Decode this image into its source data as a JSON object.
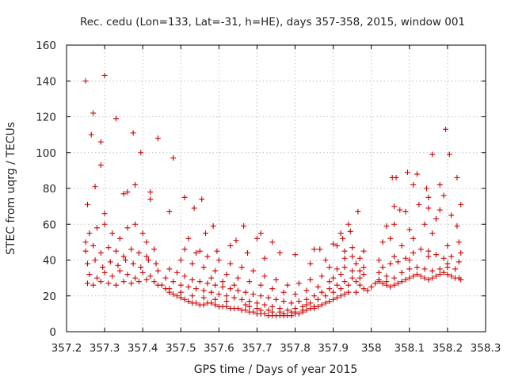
{
  "chart_data": {
    "type": "scatter",
    "title": "Rec. cedu (Lon=133, Lat=-31, h=HE), days 357-358, 2015, window 001",
    "xlabel": "GPS time / Days of year 2015",
    "ylabel": "STEC from uqrg / TECUs",
    "xlim": [
      357.2,
      358.3
    ],
    "ylim": [
      0,
      160
    ],
    "xticks": [
      357.2,
      357.3,
      357.4,
      357.5,
      357.6,
      357.7,
      357.8,
      357.9,
      358.0,
      358.1,
      358.2,
      358.3
    ],
    "xtick_labels": [
      "357.2",
      "357.3",
      "357.4",
      "357.5",
      "357.6",
      "357.7",
      "357.8",
      "357.9",
      "358",
      "358.1",
      "358.2",
      "358.3"
    ],
    "yticks": [
      0,
      20,
      40,
      60,
      80,
      100,
      120,
      140,
      160
    ],
    "ytick_labels": [
      "0",
      "20",
      "40",
      "60",
      "80",
      "100",
      "120",
      "140",
      "160"
    ],
    "grid": true,
    "marker": "plus",
    "marker_color": "#cc0000",
    "points": [
      [
        357.25,
        140
      ],
      [
        357.3,
        143
      ],
      [
        357.27,
        122
      ],
      [
        357.33,
        119
      ],
      [
        357.265,
        110
      ],
      [
        357.29,
        106
      ],
      [
        357.375,
        111
      ],
      [
        357.44,
        108
      ],
      [
        357.395,
        100
      ],
      [
        357.48,
        97
      ],
      [
        357.29,
        93
      ],
      [
        357.38,
        82
      ],
      [
        357.275,
        81
      ],
      [
        357.35,
        77
      ],
      [
        357.42,
        78
      ],
      [
        357.3,
        66
      ],
      [
        357.255,
        71
      ],
      [
        357.36,
        78
      ],
      [
        357.42,
        74
      ],
      [
        357.47,
        67
      ],
      [
        357.51,
        75
      ],
      [
        357.555,
        74
      ],
      [
        357.535,
        69
      ],
      [
        357.585,
        59
      ],
      [
        357.565,
        55
      ],
      [
        357.665,
        59
      ],
      [
        357.71,
        55
      ],
      [
        357.74,
        50
      ],
      [
        357.7,
        52
      ],
      [
        357.645,
        51
      ],
      [
        357.52,
        52
      ],
      [
        357.55,
        45
      ],
      [
        357.595,
        45
      ],
      [
        357.63,
        48
      ],
      [
        357.675,
        44
      ],
      [
        357.72,
        41
      ],
      [
        357.76,
        44
      ],
      [
        357.8,
        43
      ],
      [
        357.85,
        46
      ],
      [
        357.865,
        46
      ],
      [
        357.9,
        49
      ],
      [
        357.925,
        52
      ],
      [
        357.945,
        56
      ],
      [
        357.965,
        67
      ],
      [
        357.95,
        47
      ],
      [
        357.98,
        45
      ],
      [
        357.97,
        41
      ],
      [
        357.93,
        41
      ],
      [
        357.88,
        40
      ],
      [
        357.84,
        38
      ],
      [
        358.055,
        86
      ],
      [
        358.065,
        86
      ],
      [
        358.095,
        89
      ],
      [
        358.11,
        82
      ],
      [
        358.12,
        88
      ],
      [
        358.145,
        80
      ],
      [
        358.15,
        75
      ],
      [
        358.16,
        99
      ],
      [
        358.195,
        113
      ],
      [
        358.205,
        99
      ],
      [
        358.225,
        86
      ],
      [
        358.18,
        82
      ],
      [
        358.19,
        76
      ],
      [
        358.235,
        71
      ],
      [
        358.06,
        70
      ],
      [
        358.075,
        68
      ],
      [
        358.09,
        67
      ],
      [
        358.125,
        71
      ],
      [
        358.15,
        69
      ],
      [
        358.18,
        68
      ],
      [
        358.21,
        65
      ],
      [
        358.04,
        59
      ],
      [
        358.06,
        60
      ],
      [
        358.1,
        57
      ],
      [
        358.14,
        60
      ],
      [
        358.17,
        63
      ],
      [
        358.225,
        59
      ],
      [
        358.23,
        50
      ],
      [
        358.235,
        44
      ],
      [
        358.03,
        50
      ],
      [
        358.05,
        52
      ],
      [
        358.08,
        48
      ],
      [
        358.11,
        52
      ],
      [
        358.16,
        55
      ],
      [
        358.2,
        48
      ],
      [
        358.02,
        40
      ],
      [
        358.06,
        42
      ],
      [
        358.1,
        40
      ],
      [
        358.15,
        42
      ],
      [
        358.2,
        38
      ],
      [
        357.25,
        50
      ],
      [
        357.26,
        55
      ],
      [
        357.28,
        58
      ],
      [
        357.3,
        60
      ],
      [
        357.32,
        55
      ],
      [
        357.34,
        52
      ],
      [
        357.36,
        58
      ],
      [
        357.38,
        60
      ],
      [
        357.4,
        55
      ],
      [
        357.41,
        50
      ],
      [
        357.25,
        45
      ],
      [
        357.27,
        48
      ],
      [
        357.29,
        44
      ],
      [
        357.31,
        47
      ],
      [
        357.33,
        45
      ],
      [
        357.35,
        42
      ],
      [
        357.37,
        46
      ],
      [
        357.39,
        44
      ],
      [
        357.41,
        42
      ],
      [
        357.43,
        46
      ],
      [
        357.255,
        38
      ],
      [
        357.275,
        40
      ],
      [
        357.295,
        36
      ],
      [
        357.315,
        39
      ],
      [
        357.335,
        37
      ],
      [
        357.355,
        40
      ],
      [
        357.375,
        38
      ],
      [
        357.395,
        36
      ],
      [
        357.415,
        40
      ],
      [
        357.435,
        38
      ],
      [
        357.26,
        32
      ],
      [
        357.28,
        30
      ],
      [
        357.3,
        33
      ],
      [
        357.32,
        31
      ],
      [
        357.34,
        34
      ],
      [
        357.36,
        32
      ],
      [
        357.38,
        30
      ],
      [
        357.4,
        33
      ],
      [
        357.42,
        31
      ],
      [
        357.44,
        34
      ],
      [
        357.255,
        27
      ],
      [
        357.27,
        26
      ],
      [
        357.29,
        28
      ],
      [
        357.31,
        27
      ],
      [
        357.33,
        26
      ],
      [
        357.35,
        28
      ],
      [
        357.37,
        27
      ],
      [
        357.39,
        28
      ],
      [
        357.41,
        29
      ],
      [
        357.43,
        28
      ],
      [
        357.45,
        26
      ],
      [
        357.46,
        24
      ],
      [
        357.47,
        22
      ],
      [
        357.48,
        21
      ],
      [
        357.49,
        20
      ],
      [
        357.5,
        19
      ],
      [
        357.51,
        18
      ],
      [
        357.52,
        17
      ],
      [
        357.53,
        16
      ],
      [
        357.54,
        16
      ],
      [
        357.55,
        15
      ],
      [
        357.56,
        15
      ],
      [
        357.57,
        16
      ],
      [
        357.58,
        16
      ],
      [
        357.59,
        15
      ],
      [
        357.6,
        14
      ],
      [
        357.61,
        14
      ],
      [
        357.62,
        14
      ],
      [
        357.63,
        13
      ],
      [
        357.64,
        13
      ],
      [
        357.65,
        13
      ],
      [
        357.66,
        12
      ],
      [
        357.67,
        12
      ],
      [
        357.68,
        11
      ],
      [
        357.69,
        11
      ],
      [
        357.7,
        10
      ],
      [
        357.71,
        10
      ],
      [
        357.72,
        10
      ],
      [
        357.73,
        9
      ],
      [
        357.74,
        9
      ],
      [
        357.75,
        9
      ],
      [
        357.76,
        9
      ],
      [
        357.77,
        9
      ],
      [
        357.78,
        9
      ],
      [
        357.79,
        9
      ],
      [
        357.8,
        10
      ],
      [
        357.81,
        10
      ],
      [
        357.82,
        11
      ],
      [
        357.83,
        12
      ],
      [
        357.84,
        13
      ],
      [
        357.85,
        14
      ],
      [
        357.86,
        14
      ],
      [
        357.87,
        15
      ],
      [
        357.88,
        16
      ],
      [
        357.89,
        17
      ],
      [
        357.9,
        18
      ],
      [
        357.91,
        19
      ],
      [
        357.92,
        20
      ],
      [
        357.93,
        21
      ],
      [
        357.94,
        22
      ],
      [
        357.46,
        30
      ],
      [
        357.48,
        28
      ],
      [
        357.5,
        26
      ],
      [
        357.52,
        25
      ],
      [
        357.54,
        24
      ],
      [
        357.56,
        23
      ],
      [
        357.58,
        22
      ],
      [
        357.6,
        21
      ],
      [
        357.62,
        20
      ],
      [
        357.64,
        19
      ],
      [
        357.66,
        18
      ],
      [
        357.68,
        17
      ],
      [
        357.7,
        16
      ],
      [
        357.72,
        15
      ],
      [
        357.74,
        14
      ],
      [
        357.76,
        13
      ],
      [
        357.78,
        12
      ],
      [
        357.8,
        13
      ],
      [
        357.82,
        14
      ],
      [
        357.84,
        16
      ],
      [
        357.86,
        18
      ],
      [
        357.88,
        20
      ],
      [
        357.9,
        22
      ],
      [
        357.92,
        24
      ],
      [
        357.94,
        26
      ],
      [
        357.96,
        28
      ],
      [
        357.97,
        30
      ],
      [
        357.98,
        32
      ],
      [
        357.95,
        34
      ],
      [
        357.93,
        36
      ],
      [
        357.47,
        35
      ],
      [
        357.49,
        33
      ],
      [
        357.51,
        31
      ],
      [
        357.53,
        29
      ],
      [
        357.55,
        28
      ],
      [
        357.57,
        27
      ],
      [
        357.59,
        26
      ],
      [
        357.61,
        25
      ],
      [
        357.63,
        24
      ],
      [
        357.65,
        23
      ],
      [
        357.67,
        22
      ],
      [
        357.69,
        21
      ],
      [
        357.71,
        20
      ],
      [
        357.73,
        19
      ],
      [
        357.75,
        18
      ],
      [
        357.77,
        17
      ],
      [
        357.79,
        16
      ],
      [
        357.81,
        17
      ],
      [
        357.83,
        18
      ],
      [
        357.85,
        20
      ],
      [
        357.87,
        22
      ],
      [
        357.89,
        24
      ],
      [
        357.91,
        26
      ],
      [
        357.93,
        28
      ],
      [
        357.95,
        30
      ],
      [
        357.97,
        26
      ],
      [
        357.96,
        22
      ],
      [
        357.98,
        24
      ],
      [
        357.92,
        32
      ],
      [
        357.9,
        30
      ],
      [
        357.5,
        40
      ],
      [
        357.53,
        38
      ],
      [
        357.56,
        36
      ],
      [
        357.59,
        34
      ],
      [
        357.62,
        32
      ],
      [
        357.65,
        30
      ],
      [
        357.68,
        28
      ],
      [
        357.71,
        26
      ],
      [
        357.74,
        24
      ],
      [
        357.77,
        22
      ],
      [
        357.8,
        21
      ],
      [
        357.83,
        23
      ],
      [
        357.86,
        25
      ],
      [
        357.89,
        28
      ],
      [
        357.87,
        31
      ],
      [
        357.84,
        29
      ],
      [
        357.81,
        27
      ],
      [
        357.78,
        26
      ],
      [
        357.75,
        29
      ],
      [
        357.72,
        31
      ],
      [
        357.69,
        34
      ],
      [
        357.66,
        36
      ],
      [
        357.63,
        38
      ],
      [
        357.6,
        40
      ],
      [
        357.57,
        42
      ],
      [
        357.54,
        44
      ],
      [
        357.51,
        46
      ],
      [
        357.58,
        30
      ],
      [
        357.61,
        28
      ],
      [
        357.64,
        26
      ],
      [
        357.67,
        15
      ],
      [
        357.7,
        13
      ],
      [
        357.73,
        12
      ],
      [
        357.76,
        11
      ],
      [
        357.79,
        11
      ],
      [
        357.82,
        12
      ],
      [
        357.85,
        13
      ],
      [
        357.62,
        17
      ],
      [
        357.59,
        18
      ],
      [
        357.56,
        19
      ],
      [
        357.53,
        20
      ],
      [
        357.5,
        22
      ],
      [
        357.47,
        24
      ],
      [
        357.44,
        26
      ],
      [
        357.68,
        14
      ],
      [
        357.71,
        12
      ],
      [
        357.74,
        11
      ],
      [
        357.77,
        10
      ],
      [
        357.8,
        11
      ],
      [
        357.83,
        15
      ],
      [
        357.99,
        23
      ],
      [
        358.0,
        25
      ],
      [
        358.01,
        27
      ],
      [
        358.02,
        28
      ],
      [
        358.03,
        27
      ],
      [
        358.04,
        26
      ],
      [
        358.05,
        25
      ],
      [
        358.06,
        26
      ],
      [
        358.07,
        27
      ],
      [
        358.08,
        28
      ],
      [
        358.09,
        29
      ],
      [
        358.1,
        30
      ],
      [
        358.11,
        31
      ],
      [
        358.12,
        32
      ],
      [
        358.13,
        31
      ],
      [
        358.14,
        30
      ],
      [
        358.15,
        29
      ],
      [
        358.16,
        30
      ],
      [
        358.17,
        31
      ],
      [
        358.18,
        32
      ],
      [
        358.19,
        33
      ],
      [
        358.2,
        32
      ],
      [
        358.21,
        31
      ],
      [
        358.22,
        30
      ],
      [
        358.23,
        30
      ],
      [
        358.235,
        29
      ],
      [
        358.02,
        33
      ],
      [
        358.04,
        31
      ],
      [
        358.06,
        30
      ],
      [
        358.08,
        33
      ],
      [
        358.1,
        35
      ],
      [
        358.12,
        36
      ],
      [
        358.14,
        35
      ],
      [
        358.16,
        34
      ],
      [
        358.18,
        35
      ],
      [
        358.2,
        36
      ],
      [
        358.22,
        35
      ],
      [
        358.03,
        36
      ],
      [
        358.05,
        38
      ],
      [
        358.07,
        39
      ],
      [
        358.09,
        41
      ],
      [
        358.11,
        44
      ],
      [
        358.13,
        46
      ],
      [
        358.15,
        45
      ],
      [
        358.17,
        43
      ],
      [
        358.19,
        41
      ],
      [
        358.21,
        42
      ],
      [
        358.23,
        39
      ],
      [
        358.02,
        29
      ],
      [
        358.04,
        28
      ],
      [
        357.92,
        55
      ],
      [
        357.94,
        60
      ],
      [
        357.93,
        45
      ],
      [
        357.91,
        48
      ],
      [
        357.96,
        38
      ],
      [
        357.98,
        36
      ],
      [
        357.97,
        34
      ],
      [
        357.95,
        42
      ],
      [
        357.89,
        36
      ],
      [
        357.91,
        35
      ]
    ]
  }
}
